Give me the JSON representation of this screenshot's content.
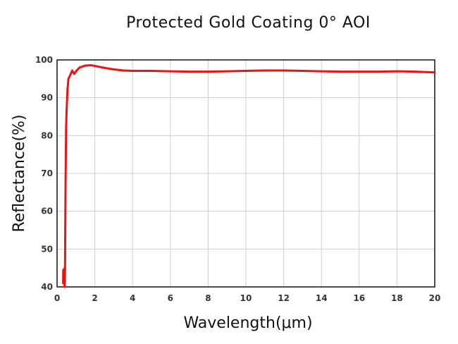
{
  "chart_data": {
    "type": "line",
    "title": "Protected Gold Coating 0° AOI",
    "xlabel": "Wavelength(μm)",
    "ylabel": "Reflectance(%)",
    "xlim": [
      0,
      20
    ],
    "ylim": [
      40,
      100
    ],
    "xticks": [
      0,
      2,
      4,
      6,
      8,
      10,
      12,
      14,
      16,
      18,
      20
    ],
    "yticks": [
      40,
      50,
      60,
      70,
      80,
      90,
      100
    ],
    "grid": true,
    "series": [
      {
        "color": "#ee1111",
        "x": [
          0.32,
          0.33,
          0.36,
          0.38,
          0.4,
          0.42,
          0.45,
          0.48,
          0.5,
          0.55,
          0.6,
          0.7,
          0.8,
          0.9,
          1.0,
          1.2,
          1.5,
          1.8,
          2.0,
          2.5,
          3.0,
          3.5,
          4.0,
          5.0,
          6.0,
          7.0,
          8.0,
          9.0,
          10.0,
          11.0,
          12.0,
          13.0,
          14.0,
          15.0,
          16.0,
          17.0,
          18.0,
          19.0,
          20.0
        ],
        "y": [
          41.0,
          44.5,
          41.5,
          44.8,
          40.0,
          44.5,
          68.0,
          82.0,
          86.0,
          92.0,
          95.0,
          96.0,
          97.2,
          96.3,
          97.0,
          98.0,
          98.5,
          98.6,
          98.4,
          97.9,
          97.5,
          97.2,
          97.1,
          97.1,
          97.0,
          96.9,
          96.9,
          97.0,
          97.1,
          97.2,
          97.2,
          97.1,
          97.0,
          96.9,
          96.9,
          96.9,
          97.0,
          96.9,
          96.7
        ]
      }
    ]
  }
}
